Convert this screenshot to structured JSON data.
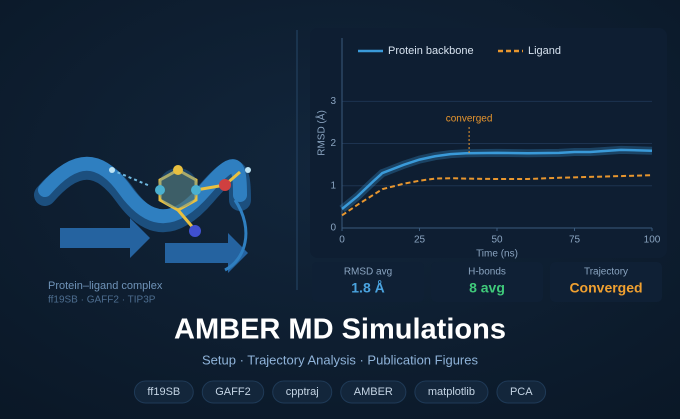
{
  "chart_data": {
    "type": "line",
    "xlabel": "Time (ns)",
    "ylabel": "RMSD (Å)",
    "x": [
      0,
      5,
      10,
      13,
      20,
      25,
      30,
      35,
      40,
      50,
      60,
      70,
      75,
      80,
      90,
      100
    ],
    "series": [
      {
        "name": "Protein backbone",
        "color": "#3a9ad9",
        "dash": false,
        "values": [
          0.45,
          0.75,
          1.1,
          1.3,
          1.5,
          1.62,
          1.7,
          1.75,
          1.77,
          1.78,
          1.77,
          1.78,
          1.8,
          1.8,
          1.85,
          1.83
        ]
      },
      {
        "name": "Ligand",
        "color": "#e8962e",
        "dash": true,
        "values": [
          0.3,
          0.55,
          0.78,
          0.92,
          1.05,
          1.12,
          1.17,
          1.18,
          1.17,
          1.16,
          1.16,
          1.19,
          1.2,
          1.21,
          1.23,
          1.25
        ]
      }
    ],
    "xlim": [
      0,
      100
    ],
    "xticks": [
      0,
      25,
      50,
      75,
      100
    ],
    "ylim": [
      0,
      4.5
    ],
    "yticks": [
      0,
      1,
      2,
      3
    ],
    "grid": true,
    "legend": "top-left",
    "annotation": {
      "text": "converged",
      "x": 41
    }
  },
  "illustration": {
    "caption": "Protein–ligand complex",
    "subcaption": "ff19SB · GAFF2 · TIP3P"
  },
  "stats": [
    {
      "label": "RMSD avg",
      "value": "1.8 Å",
      "color": "#4aa3df"
    },
    {
      "label": "H-bonds",
      "value": "8 avg",
      "color": "#3fc97a"
    },
    {
      "label": "Trajectory",
      "value": "Converged",
      "color": "#f0a030"
    }
  ],
  "title": "AMBER MD Simulations",
  "subtitle": "Setup · Trajectory Analysis · Publication Figures",
  "tags": [
    "ff19SB",
    "GAFF2",
    "cpptraj",
    "AMBER",
    "matplotlib",
    "PCA"
  ]
}
